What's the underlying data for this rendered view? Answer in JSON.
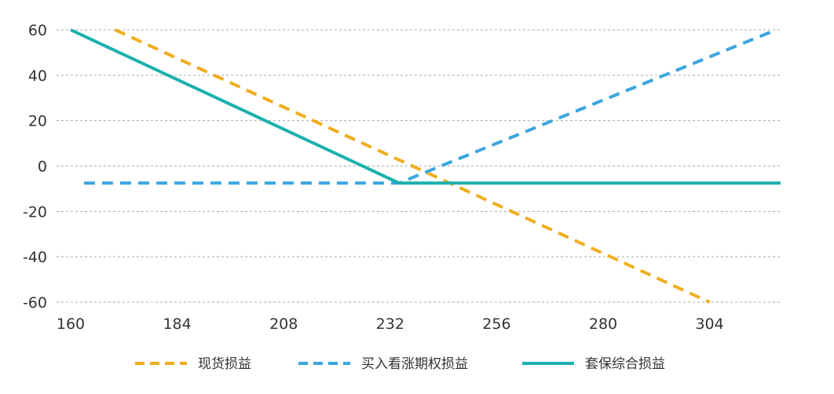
{
  "chart_data": {
    "type": "line",
    "title": "",
    "xlabel": "",
    "ylabel": "",
    "xlim": [
      160,
      320
    ],
    "ylim": [
      -60,
      60
    ],
    "x_ticks": [
      "160",
      "184",
      "208",
      "232",
      "256",
      "280",
      "304"
    ],
    "y_ticks": [
      "60",
      "40",
      "20",
      "0",
      "-20",
      "-40",
      "-60"
    ],
    "grid": "horizontal dashed",
    "legend_position": "bottom",
    "series": [
      {
        "name": "现货损益",
        "color": "#f0ad1e",
        "style": "dashed",
        "points": [
          [
            170,
            60
          ],
          [
            304,
            -60
          ]
        ]
      },
      {
        "name": "买入看涨期权损益",
        "color": "#3aa6e0",
        "style": "dashed",
        "points": [
          [
            163,
            -7.5
          ],
          [
            234,
            -7.5
          ],
          [
            319,
            60
          ]
        ]
      },
      {
        "name": "套保综合损益",
        "color": "#1bb0ad",
        "style": "solid",
        "points": [
          [
            160,
            60
          ],
          [
            234,
            -7.5
          ],
          [
            320,
            -7.5
          ]
        ]
      }
    ]
  }
}
